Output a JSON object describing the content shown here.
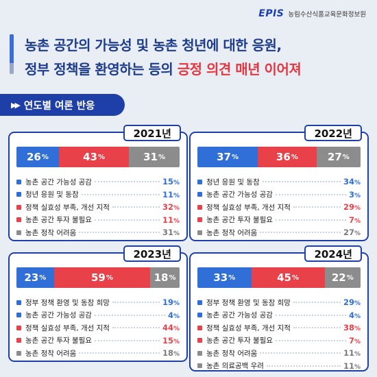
{
  "header": {
    "logo_text": "EPIS",
    "org_name": "농림수산식품교육문화정보원",
    "title_line1": "농촌 공간의 가능성 및 농촌 청년에 대한 응원,",
    "title_line2_plain": "정부 정책을 환영하는 등의 ",
    "title_line2_highlight": "긍정 의견 매년 이어져"
  },
  "section": {
    "icon": "double-play-icon",
    "label": "연도별 여론 반응"
  },
  "colors": {
    "positive": "#2f6fd7",
    "negative": "#e8414a",
    "neutral": "#8c8c8c",
    "frame": "#1f3fa8"
  },
  "unit": "%",
  "cards": [
    {
      "year": "2021년",
      "bar": [
        {
          "type": "pos",
          "value": 26
        },
        {
          "type": "neg",
          "value": 43
        },
        {
          "type": "neu",
          "value": 31
        }
      ],
      "items": [
        {
          "type": "pos",
          "label": "농촌 공간 가능성 공감",
          "value": 15
        },
        {
          "type": "pos",
          "label": "청년 응원 및 동참",
          "value": 11
        },
        {
          "type": "neg",
          "label": "정책 실효성 부족, 개선 지적",
          "value": 32
        },
        {
          "type": "neg",
          "label": "농촌 공간 투자 불필요",
          "value": 11
        },
        {
          "type": "neu",
          "label": "농촌 정착 어려움",
          "value": 31
        }
      ]
    },
    {
      "year": "2022년",
      "bar": [
        {
          "type": "pos",
          "value": 37
        },
        {
          "type": "neg",
          "value": 36
        },
        {
          "type": "neu",
          "value": 27
        }
      ],
      "items": [
        {
          "type": "pos",
          "label": "청년 응원 및 동참",
          "value": 34
        },
        {
          "type": "pos",
          "label": "농촌 공간 가능성 공감",
          "value": 3
        },
        {
          "type": "neg",
          "label": "정책 실효성 부족, 개선 지적",
          "value": 29
        },
        {
          "type": "neg",
          "label": "농촌 공간 투자 불필요",
          "value": 7
        },
        {
          "type": "neu",
          "label": "농촌 정착 어려움",
          "value": 27
        }
      ]
    },
    {
      "year": "2023년",
      "bar": [
        {
          "type": "pos",
          "value": 23
        },
        {
          "type": "neg",
          "value": 59
        },
        {
          "type": "neu",
          "value": 18
        }
      ],
      "items": [
        {
          "type": "pos",
          "label": "정부 정책 환영 및 동참 희망",
          "value": 19
        },
        {
          "type": "pos",
          "label": "농촌 공간 가능성 공감",
          "value": 4
        },
        {
          "type": "neg",
          "label": "정책 실효성 부족, 개선 지적",
          "value": 44
        },
        {
          "type": "neg",
          "label": "농촌 공간 투자 불필요",
          "value": 15
        },
        {
          "type": "neu",
          "label": "농촌 정착 어려움",
          "value": 18
        }
      ]
    },
    {
      "year": "2024년",
      "bar": [
        {
          "type": "pos",
          "value": 33
        },
        {
          "type": "neg",
          "value": 45
        },
        {
          "type": "neu",
          "value": 22
        }
      ],
      "items": [
        {
          "type": "pos",
          "label": "정부 정책 환영 및 동참 희망",
          "value": 29
        },
        {
          "type": "pos",
          "label": "농촌 공간 가능성 공감",
          "value": 4
        },
        {
          "type": "neg",
          "label": "정책 실효성 부족, 개선 지적",
          "value": 38
        },
        {
          "type": "neg",
          "label": "농촌 공간 투자 불필요",
          "value": 7
        },
        {
          "type": "neu",
          "label": "농촌 정착 어려움",
          "value": 11
        },
        {
          "type": "neu",
          "label": "농촌 의료공백 우려",
          "value": 11
        }
      ]
    }
  ]
}
